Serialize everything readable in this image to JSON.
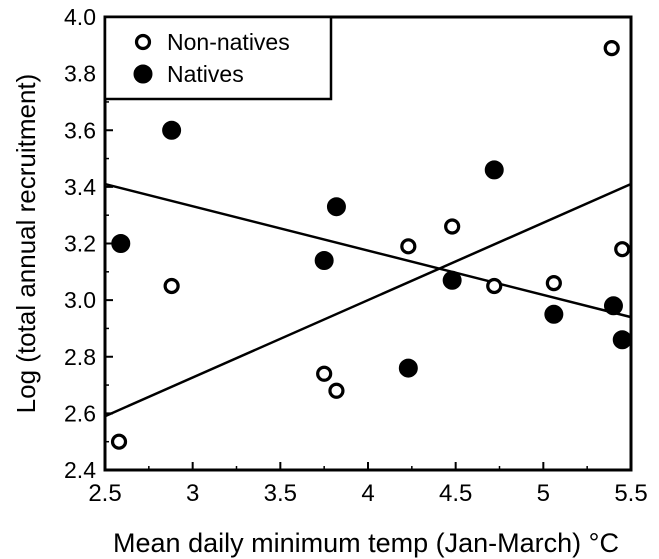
{
  "chart_data": {
    "type": "scatter",
    "title": "",
    "xlabel": "Mean daily minimum temp (Jan-March) °C",
    "ylabel": "Log (total annual recruitment)",
    "xlim": [
      2.5,
      5.5
    ],
    "ylim": [
      2.4,
      4.0
    ],
    "x_ticks": [
      "2.5",
      "3",
      "3.5",
      "4",
      "4.5",
      "5",
      "5.5"
    ],
    "y_ticks": [
      "2.4",
      "2.6",
      "2.8",
      "3.0",
      "3.2",
      "3.4",
      "3.6",
      "3.8",
      "4.0"
    ],
    "grid": false,
    "legend_position": "top-left",
    "series": [
      {
        "name": "Non-natives",
        "marker": "open-circle",
        "color": "#000000",
        "points": [
          {
            "x": 2.58,
            "y": 2.5
          },
          {
            "x": 2.88,
            "y": 3.05
          },
          {
            "x": 3.75,
            "y": 2.74
          },
          {
            "x": 3.82,
            "y": 2.68
          },
          {
            "x": 4.23,
            "y": 3.19
          },
          {
            "x": 4.48,
            "y": 3.26
          },
          {
            "x": 4.72,
            "y": 3.05
          },
          {
            "x": 5.06,
            "y": 3.06
          },
          {
            "x": 5.39,
            "y": 3.89
          },
          {
            "x": 5.45,
            "y": 3.18
          }
        ],
        "fit_line": [
          {
            "x": 2.5,
            "y": 2.59
          },
          {
            "x": 5.5,
            "y": 3.41
          }
        ]
      },
      {
        "name": "Natives",
        "marker": "filled-circle",
        "color": "#000000",
        "points": [
          {
            "x": 2.59,
            "y": 3.2
          },
          {
            "x": 2.88,
            "y": 3.6
          },
          {
            "x": 3.75,
            "y": 3.14
          },
          {
            "x": 3.82,
            "y": 3.33
          },
          {
            "x": 4.23,
            "y": 2.76
          },
          {
            "x": 4.48,
            "y": 3.07
          },
          {
            "x": 4.72,
            "y": 3.46
          },
          {
            "x": 5.06,
            "y": 2.95
          },
          {
            "x": 5.4,
            "y": 2.98
          },
          {
            "x": 5.45,
            "y": 2.86
          }
        ],
        "fit_line": [
          {
            "x": 2.5,
            "y": 3.41
          },
          {
            "x": 5.5,
            "y": 2.94
          }
        ]
      }
    ]
  }
}
